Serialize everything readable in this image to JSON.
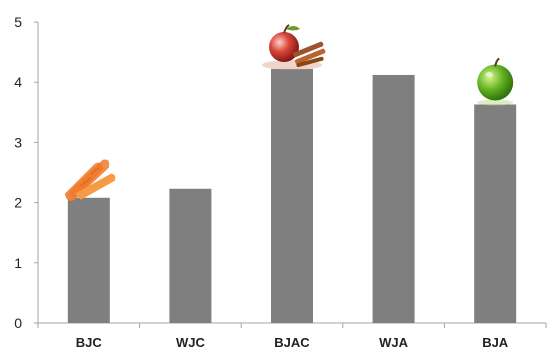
{
  "chart_data": {
    "type": "bar",
    "title": "",
    "xlabel": "",
    "ylabel": "",
    "categories": [
      "BJC",
      "WJC",
      "BJAC",
      "WJA",
      "BJA"
    ],
    "values": [
      2.08,
      2.23,
      4.22,
      4.12,
      3.63
    ],
    "ylim": [
      0,
      5
    ],
    "yticks": [
      "0",
      "1",
      "2",
      "3",
      "4",
      "5"
    ],
    "grid": false,
    "legend": "none",
    "colors": {
      "bar": "#7f7f7f",
      "axis": "#a6a6a6"
    },
    "decorations": [
      {
        "category": "BJC",
        "icon": "carrot-icon"
      },
      {
        "category": "BJAC",
        "icon": "apple-cinnamon-icon"
      },
      {
        "category": "BJA",
        "icon": "green-apple-icon"
      }
    ]
  }
}
